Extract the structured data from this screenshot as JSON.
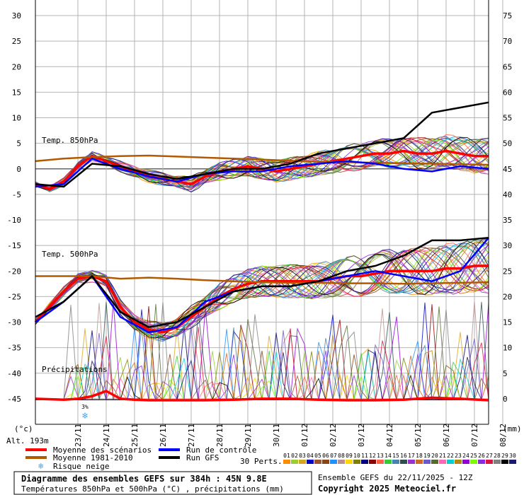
{
  "chart_data": {
    "type": "line",
    "left_axis": {
      "min": -50,
      "max": 30,
      "ticks": [
        30,
        25,
        20,
        15,
        10,
        5,
        0,
        -5,
        -10,
        -15,
        -20,
        -25,
        -30,
        -35,
        -40,
        -45
      ],
      "unit": "(°c)"
    },
    "right_axis": {
      "ticks": [
        75,
        70,
        65,
        60,
        55,
        50,
        45,
        40,
        35,
        30,
        25,
        20,
        15,
        10,
        5,
        0
      ],
      "unit": "(mm)"
    },
    "dates": [
      "23/11",
      "24/11",
      "25/11",
      "26/11",
      "27/11",
      "28/11",
      "29/11",
      "30/11",
      "01/12",
      "02/12",
      "03/12",
      "04/12",
      "05/12",
      "06/12",
      "07/12",
      "08/12"
    ],
    "x_range_days": [
      0,
      16
    ],
    "annotations": {
      "t850": "Temp. 850hPa",
      "t500": "Temp. 500hPa",
      "precip": "Précipitations",
      "altitude": "Alt. 193m",
      "snow_pct": "3%"
    },
    "series": [
      {
        "name": "Moyenne des scénarios",
        "group": "t850",
        "color": "#ff0000",
        "x": [
          0,
          0.5,
          1,
          1.5,
          2,
          2.5,
          3,
          3.5,
          4,
          4.5,
          5,
          5.5,
          6,
          6.5,
          7,
          7.5,
          8,
          8.5,
          9,
          9.5,
          10,
          10.5,
          11,
          11.5,
          12,
          12.5,
          13,
          13.5,
          14,
          14.5,
          15,
          15.5,
          16
        ],
        "y": [
          -3,
          -4,
          -2.5,
          0.5,
          2.5,
          1.5,
          0.5,
          -0.5,
          -1.5,
          -2,
          -2.5,
          -3,
          -1.5,
          -0.5,
          0,
          0.5,
          0,
          -0.5,
          0,
          0.5,
          1,
          1.5,
          2,
          2.5,
          3,
          3,
          3.5,
          3,
          3,
          3.5,
          3,
          2.5,
          2.5
        ]
      },
      {
        "name": "Moyenne 1981-2010",
        "group": "t850",
        "color": "#b35a00",
        "x": [
          0,
          1,
          2,
          3,
          4,
          5,
          6,
          7,
          8,
          9,
          10,
          11,
          12,
          13,
          14,
          15,
          16
        ],
        "y": [
          1.5,
          2,
          2.3,
          2.5,
          2.6,
          2.4,
          2.2,
          2.0,
          1.8,
          1.6,
          1.4,
          1.3,
          1.2,
          1.1,
          1.0,
          0.9,
          0.8
        ]
      },
      {
        "name": "Run de contrôle",
        "group": "t850",
        "color": "#0000ff",
        "x": [
          0,
          1,
          2,
          3,
          4,
          5,
          6,
          7,
          8,
          9,
          10,
          11,
          12,
          13,
          14,
          15,
          16
        ],
        "y": [
          -3.5,
          -3,
          2,
          0,
          -1.5,
          -2.5,
          -1,
          -0.5,
          -0.5,
          0.5,
          1,
          1.5,
          1,
          0,
          -0.5,
          0.5,
          0
        ]
      },
      {
        "name": "Run GFS",
        "group": "t850",
        "color": "#000000",
        "x": [
          0,
          1,
          2,
          3,
          4,
          5,
          6,
          7,
          8,
          9,
          10,
          11,
          12,
          13,
          14,
          15,
          16
        ],
        "y": [
          -3,
          -3.5,
          1,
          0.5,
          -1,
          -2,
          -1,
          0,
          0,
          1,
          3,
          4,
          5,
          6,
          11,
          12,
          13
        ]
      },
      {
        "name": "Moyenne des scénarios",
        "group": "t500",
        "color": "#ff0000",
        "x": [
          0,
          0.5,
          1,
          1.5,
          2,
          2.5,
          3,
          3.5,
          4,
          4.5,
          5,
          5.5,
          6,
          6.5,
          7,
          7.5,
          8,
          8.5,
          9,
          9.5,
          10,
          10.5,
          11,
          11.5,
          12,
          12.5,
          13,
          13.5,
          14,
          14.5,
          15,
          15.5,
          16
        ],
        "y": [
          -30,
          -27,
          -24,
          -21.5,
          -21,
          -22,
          -27,
          -30,
          -31.5,
          -32,
          -31,
          -29,
          -27,
          -25,
          -23.5,
          -22.5,
          -22,
          -22,
          -22,
          -22,
          -22,
          -21.5,
          -21,
          -21,
          -20.5,
          -20,
          -20,
          -20,
          -20,
          -19.5,
          -19.5,
          -19,
          -19
        ]
      },
      {
        "name": "Moyenne 1981-2010",
        "group": "t500",
        "color": "#b35a00",
        "x": [
          0,
          1,
          2,
          3,
          4,
          5,
          6,
          7,
          8,
          9,
          10,
          11,
          12,
          13,
          14,
          15,
          16
        ],
        "y": [
          -21,
          -21,
          -21,
          -21.5,
          -21.3,
          -21.5,
          -21.8,
          -22,
          -22.2,
          -22.3,
          -22.3,
          -22.4,
          -22.4,
          -22.5,
          -22.4,
          -22.3,
          -22.2
        ]
      },
      {
        "name": "Run de contrôle",
        "group": "t500",
        "color": "#0000ff",
        "x": [
          0,
          1,
          2,
          3,
          4,
          5,
          6,
          7,
          8,
          9,
          10,
          11,
          12,
          13,
          14,
          15,
          16
        ],
        "y": [
          -30,
          -26,
          -21,
          -29,
          -32,
          -31,
          -26,
          -24,
          -23,
          -23,
          -22,
          -21,
          -20,
          -21,
          -22,
          -20,
          -13.5
        ]
      },
      {
        "name": "Run GFS",
        "group": "t500",
        "color": "#000000",
        "x": [
          0,
          1,
          2,
          3,
          4,
          5,
          6,
          7,
          8,
          9,
          10,
          11,
          12,
          13,
          14,
          15,
          16
        ],
        "y": [
          -29,
          -26,
          -21,
          -28,
          -31,
          -30,
          -27,
          -24,
          -23,
          -23,
          -22,
          -20,
          -19,
          -17,
          -14,
          -14,
          -13.5
        ]
      },
      {
        "name": "Moyenne des scénarios",
        "group": "precip",
        "color": "#ff0000",
        "x": [
          0,
          1,
          1.5,
          2,
          2.5,
          3,
          3.5,
          4,
          5,
          6,
          7,
          8,
          9,
          10,
          11,
          12,
          13,
          14,
          15,
          16
        ],
        "y": [
          -45,
          -45.2,
          -45,
          -44.5,
          -43.5,
          -45,
          -45.2,
          -45.3,
          -45.3,
          -45.3,
          -45.2,
          -45,
          -45,
          -45.2,
          -45.3,
          -45.3,
          -45.2,
          -44.8,
          -45,
          -45.3
        ]
      }
    ],
    "legend": {
      "items": [
        {
          "name": "Moyenne des scénarios",
          "color": "#ff0000"
        },
        {
          "name": "Moyenne 1981-2010",
          "color": "#b35a00"
        },
        {
          "name": "Risque neige",
          "color": "#4aa7e8"
        },
        {
          "name": "Run de contrôle",
          "color": "#0000ff"
        },
        {
          "name": "Run GFS",
          "color": "#000000"
        }
      ],
      "perts_label": "30 Perts.",
      "perts": [
        "01",
        "02",
        "03",
        "04",
        "05",
        "06",
        "07",
        "08",
        "09",
        "10",
        "11",
        "12",
        "13",
        "14",
        "15",
        "16",
        "17",
        "18",
        "19",
        "20",
        "21",
        "22",
        "23",
        "24",
        "25",
        "26",
        "27",
        "28",
        "29",
        "30"
      ],
      "pert_colors": [
        "#ff8c00",
        "#9acd32",
        "#daa520",
        "#0000cd",
        "#a0522d",
        "#8b4513",
        "#1e90ff",
        "#bc8f8f",
        "#ffd700",
        "#808000",
        "#000080",
        "#8b0000",
        "#ff6347",
        "#32cd32",
        "#4682b4",
        "#2f4f4f",
        "#9932cc",
        "#d2691e",
        "#6a5acd",
        "#556b2f",
        "#ff69b4",
        "#00ced1",
        "#b8860b",
        "#9400d3",
        "#7cfc00",
        "#8a2be2",
        "#dc143c",
        "#808080",
        "#000000",
        "#191970"
      ]
    },
    "footer": {
      "title": "Diagramme des ensembles GEFS sur 384h : 45N 9.8E",
      "subtitle": "Températures 850hPa et 500hPa (°C) , précipitations (mm)",
      "run": "Ensemble GEFS du 22/11/2025 - 12Z",
      "copyright": "Copyright 2025 Meteociel.fr"
    }
  }
}
